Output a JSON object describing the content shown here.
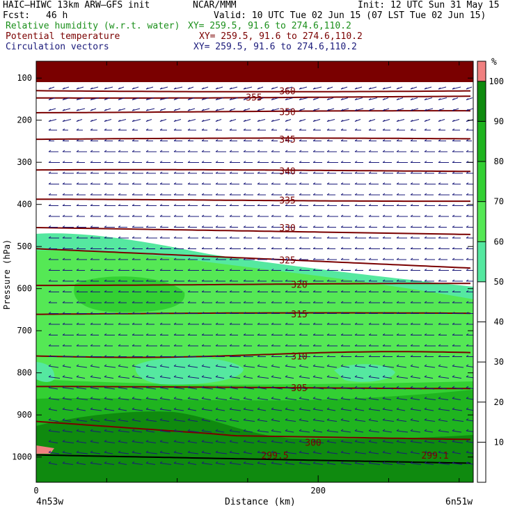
{
  "header": {
    "model": "HAIC–HIWC 13km ARW–GFS init",
    "org": "NCAR/MMM",
    "init": "Init: 12 UTC Sun 31 May 15",
    "fcst_label": "Fcst:",
    "fcst_value": "46 h",
    "valid": "Valid: 10 UTC Tue 02 Jun 15 (07 LST Tue 02 Jun 15)",
    "rh_label": "Relative humidity (w.r.t. water)",
    "rh_xy": "XY= 259.5, 91.6 to 274.6,110.2",
    "theta_label": "Potential temperature",
    "theta_xy": "XY= 259.5, 91.6 to 274.6,110.2",
    "circ_label": "Circulation vectors",
    "circ_xy": "XY= 259.5, 91.6 to 274.6,110.2"
  },
  "chart_data": {
    "type": "cross-section",
    "xlabel": "Distance (km)",
    "ylabel": "Pressure (hPa)",
    "x_ticks": [
      "0",
      "200"
    ],
    "x_start_label": "4n53w",
    "x_end_label": "6n51w",
    "xlim": [
      0,
      310
    ],
    "y_ticks": [
      "100",
      "200",
      "300",
      "400",
      "500",
      "600",
      "700",
      "800",
      "900",
      "1000"
    ],
    "ylim": [
      60,
      1060
    ],
    "colorbar": {
      "unit": "%",
      "levels": [
        10,
        20,
        30,
        40,
        50,
        60,
        70,
        80,
        90,
        100
      ],
      "colors": {
        "below_50": "#ffffff",
        "50_60": "#55e8a0",
        "60_70": "#55e855",
        "70_80": "#33d033",
        "80_90": "#1fb41f",
        "90_100": "#0f8a0f",
        "above_100": "#f08080"
      }
    },
    "theta_isolines": [
      {
        "label": "360",
        "pressure": 130
      },
      {
        "label": "355",
        "pressure": 145
      },
      {
        "label": "350",
        "pressure": 180
      },
      {
        "label": "345",
        "pressure": 245
      },
      {
        "label": "340",
        "pressure": 320
      },
      {
        "label": "335",
        "pressure": 390
      },
      {
        "label": "330",
        "pressure": 455
      },
      {
        "label": "325",
        "pressure": 530
      },
      {
        "label": "320",
        "pressure": 590
      },
      {
        "label": "315",
        "pressure": 660
      },
      {
        "label": "310",
        "pressure": 760
      },
      {
        "label": "305",
        "pressure": 835
      },
      {
        "label": "300",
        "pressure": 965
      },
      {
        "label": "299.5",
        "pressure": 1010
      },
      {
        "label": "299.1",
        "pressure": 1010
      }
    ],
    "vectors": "predominantly easterly (pointing left) at all levels",
    "grid": false
  }
}
